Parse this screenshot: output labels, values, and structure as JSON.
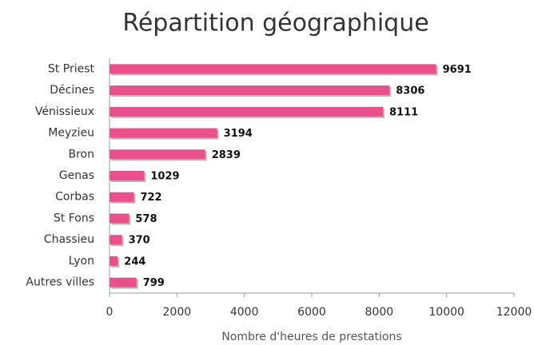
{
  "chart_data": {
    "type": "bar",
    "orientation": "horizontal",
    "title": "Répartition géographique",
    "x_label": "Nombre d'heures de prestations",
    "categories": [
      "St Priest",
      "Décines",
      "Vénissieux",
      "Meyzieu",
      "Bron",
      "Genas",
      "Corbas",
      "St Fons",
      "Chassieu",
      "Lyon",
      "Autres villes"
    ],
    "values": [
      9691,
      8306,
      8111,
      3194,
      2839,
      1029,
      722,
      578,
      370,
      244,
      799
    ],
    "color": "#e9508c",
    "xlim": [
      0,
      12000
    ],
    "xticks": [
      0,
      2000,
      4000,
      6000,
      8000,
      10000,
      12000
    ]
  }
}
